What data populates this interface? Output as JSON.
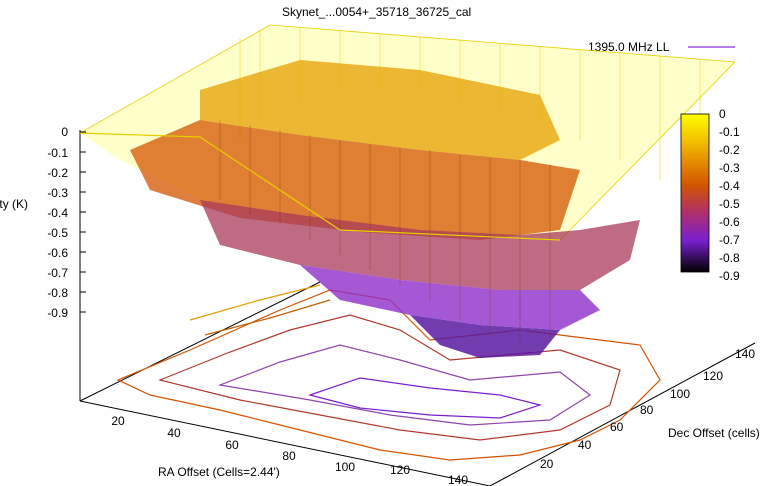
{
  "chart_data": {
    "type": "surface",
    "title": "Skynet_...0054+_35718_36725_cal",
    "xlabel": "RA Offset (Cells=2.44')",
    "ylabel": "Dec Offset (cells)",
    "zlabel": "Intensity (K)",
    "legend": {
      "label": "1395.0 MHz LL",
      "placement": "top-right",
      "color": "#8a2be2"
    },
    "x_ticks": [
      "20",
      "40",
      "60",
      "80",
      "100",
      "120",
      "140"
    ],
    "y_ticks": [
      "20",
      "40",
      "60",
      "80",
      "100",
      "120",
      "140"
    ],
    "z_ticks": [
      "0",
      "-0.1",
      "-0.2",
      "-0.3",
      "-0.4",
      "-0.5",
      "-0.6",
      "-0.7",
      "-0.8",
      "-0.9"
    ],
    "xlim": [
      0,
      150
    ],
    "ylim": [
      0,
      150
    ],
    "zlim": [
      -0.9,
      0
    ],
    "colorbar": {
      "ticks": [
        "0",
        "-0.1",
        "-0.2",
        "-0.3",
        "-0.4",
        "-0.5",
        "-0.6",
        "-0.7",
        "-0.8",
        "-0.9"
      ],
      "range": [
        -0.9,
        0
      ],
      "palette": [
        "#000000",
        "#3a0a6e",
        "#6a1fb5",
        "#9b2ecf",
        "#c0392b",
        "#d35400",
        "#e08a00",
        "#f0c000",
        "#ffff00"
      ]
    },
    "surface_levels": [
      {
        "region": "outer plateau",
        "z": 0.0
      },
      {
        "region": "upper shelf",
        "z": -0.25
      },
      {
        "region": "middle shelf",
        "z": -0.45
      },
      {
        "region": "lower shelf",
        "z": -0.65
      },
      {
        "region": "minimum",
        "z": -0.85
      }
    ],
    "contours": true,
    "grid": false
  }
}
